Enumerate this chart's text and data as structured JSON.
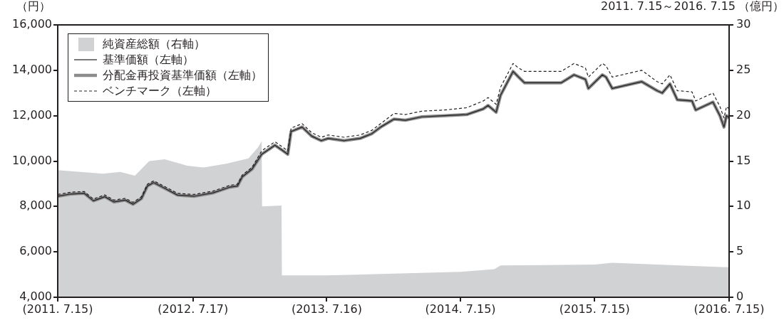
{
  "chart_data": {
    "type": "line",
    "ylabel": "（円）",
    "y2label": "（億円）",
    "annotations": [
      "2011. 7.15～2016. 7.15"
    ],
    "legend": "top left",
    "xlim": [
      "2011-07-15",
      "2016-07-15"
    ],
    "xticks": [
      {
        "value": "2011-07-15",
        "label": "(2011. 7.15)"
      },
      {
        "value": "2012-07-17",
        "label": "(2012. 7.17)"
      },
      {
        "value": "2013-07-16",
        "label": "(2013. 7.16)"
      },
      {
        "value": "2014-07-15",
        "label": "(2014. 7.15)"
      },
      {
        "value": "2015-07-15",
        "label": "(2015. 7.15)"
      },
      {
        "value": "2016-07-15",
        "label": "(2016. 7.15)"
      }
    ],
    "ylim": [
      4000,
      16000
    ],
    "yticks": [
      {
        "value": 4000,
        "label": "4,000"
      },
      {
        "value": 6000,
        "label": "6,000"
      },
      {
        "value": 8000,
        "label": "8,000"
      },
      {
        "value": 10000,
        "label": "10,000"
      },
      {
        "value": 12000,
        "label": "12,000"
      },
      {
        "value": 14000,
        "label": "14,000"
      },
      {
        "value": 16000,
        "label": "16,000"
      }
    ],
    "y2lim": [
      0,
      30
    ],
    "y2ticks": [
      0,
      5,
      10,
      15,
      20,
      25,
      30
    ],
    "x": [
      "2011-07-15",
      "2011-08-20",
      "2011-09-25",
      "2011-10-20",
      "2011-11-20",
      "2011-12-15",
      "2012-01-15",
      "2012-02-05",
      "2012-02-28",
      "2012-03-15",
      "2012-04-01",
      "2012-05-01",
      "2012-06-05",
      "2012-07-20",
      "2012-09-10",
      "2012-10-25",
      "2012-11-15",
      "2012-11-28",
      "2012-12-25",
      "2013-01-20",
      "2013-02-25",
      "2013-03-15",
      "2013-04-01",
      "2013-04-10",
      "2013-05-10",
      "2013-06-05",
      "2013-07-01",
      "2013-07-20",
      "2013-09-01",
      "2013-10-15",
      "2013-11-15",
      "2013-12-10",
      "2014-01-15",
      "2014-02-15",
      "2014-04-01",
      "2014-06-01",
      "2014-08-01",
      "2014-09-15",
      "2014-09-28",
      "2014-10-20",
      "2014-11-01",
      "2014-12-05",
      "2014-12-20",
      "2015-01-05",
      "2015-04-15",
      "2015-05-20",
      "2015-06-20",
      "2015-06-28",
      "2015-08-05",
      "2015-08-15",
      "2015-09-01",
      "2015-11-20",
      "2016-01-01",
      "2016-01-15",
      "2016-02-05",
      "2016-02-25",
      "2016-04-05",
      "2016-04-15",
      "2016-06-01",
      "2016-06-20",
      "2016-07-01",
      "2016-07-08",
      "2016-07-15"
    ],
    "series": [
      {
        "name": "純資産総額（右軸）",
        "type": "area",
        "axis": "y2",
        "color": "#d1d2d4",
        "x": [
          "2011-07-15",
          "2011-09-15",
          "2011-11-15",
          "2012-01-01",
          "2012-02-10",
          "2012-03-20",
          "2012-05-01",
          "2012-07-01",
          "2012-08-15",
          "2012-10-15",
          "2012-12-15",
          "2013-01-10",
          "2013-01-20",
          "2013-01-21",
          "2013-03-15",
          "2013-03-16",
          "2013-07-15",
          "2014-01-15",
          "2014-07-15",
          "2014-10-15",
          "2014-11-01",
          "2015-07-15",
          "2015-09-01",
          "2016-01-01",
          "2016-07-15"
        ],
        "values": [
          14.0,
          13.8,
          13.6,
          13.8,
          13.4,
          15.0,
          15.2,
          14.5,
          14.3,
          14.7,
          15.3,
          16.5,
          17.2,
          10.0,
          10.1,
          2.4,
          2.4,
          2.6,
          2.8,
          3.1,
          3.5,
          3.6,
          3.8,
          3.6,
          3.3
        ]
      },
      {
        "name": "基準価額（左軸）",
        "color": "#231f20",
        "values": [
          8450,
          8550,
          8580,
          8250,
          8430,
          8200,
          8280,
          8100,
          8350,
          8900,
          9050,
          8800,
          8500,
          8450,
          8600,
          8850,
          8900,
          9300,
          9650,
          10300,
          10700,
          10500,
          10300,
          11300,
          11500,
          11100,
          10900,
          11000,
          10900,
          11000,
          11200,
          11500,
          11850,
          11800,
          11950,
          12000,
          12050,
          12300,
          12450,
          12150,
          12900,
          13950,
          13700,
          13450,
          13450,
          13800,
          13600,
          13200,
          13800,
          13700,
          13200,
          13500,
          13100,
          13000,
          13400,
          12700,
          12650,
          12250,
          12600,
          12000,
          11500,
          12000,
          11900
        ]
      },
      {
        "name": "分配金再投資基準価額（左軸）",
        "color": "#8c8c8c",
        "values": [
          8450,
          8550,
          8580,
          8250,
          8430,
          8200,
          8280,
          8100,
          8350,
          8900,
          9050,
          8800,
          8500,
          8450,
          8600,
          8850,
          8900,
          9300,
          9650,
          10300,
          10700,
          10500,
          10300,
          11300,
          11500,
          11100,
          10900,
          11000,
          10900,
          11000,
          11200,
          11500,
          11850,
          11800,
          11950,
          12000,
          12050,
          12300,
          12450,
          12150,
          12900,
          13950,
          13700,
          13450,
          13450,
          13800,
          13600,
          13200,
          13800,
          13700,
          13200,
          13500,
          13100,
          13000,
          13400,
          12700,
          12650,
          12250,
          12600,
          12000,
          11500,
          12000,
          11900
        ]
      },
      {
        "name": "ベンチマーク（左軸）",
        "line_style": "dashed",
        "color": "#231f20",
        "values": [
          8530,
          8630,
          8660,
          8330,
          8510,
          8280,
          8360,
          8180,
          8430,
          8980,
          9130,
          8880,
          8580,
          8530,
          8680,
          8930,
          8980,
          9380,
          9730,
          10450,
          10850,
          10650,
          10450,
          11450,
          11650,
          11250,
          11050,
          11150,
          11050,
          11150,
          11350,
          11650,
          12100,
          12050,
          12200,
          12250,
          12350,
          12650,
          12800,
          12500,
          13250,
          14300,
          14100,
          13950,
          13950,
          14300,
          14100,
          13700,
          14300,
          14200,
          13700,
          14000,
          13500,
          13400,
          13800,
          13100,
          13050,
          12650,
          13000,
          12400,
          11900,
          12400,
          12300
        ]
      }
    ]
  }
}
